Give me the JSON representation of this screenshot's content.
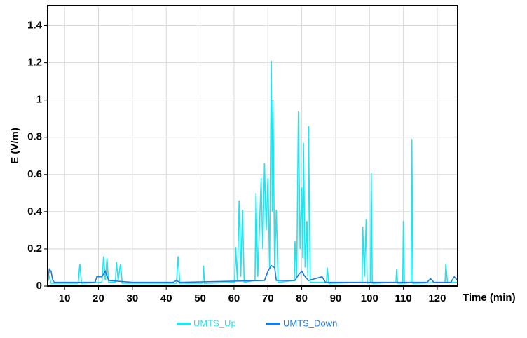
{
  "chart_data": {
    "type": "line",
    "xlabel": "Time (min)",
    "ylabel": "E (V/m)",
    "xlim": [
      5,
      126
    ],
    "ylim": [
      0,
      1.5
    ],
    "xticks": [
      10,
      20,
      30,
      40,
      50,
      60,
      70,
      80,
      90,
      100,
      110,
      120
    ],
    "yticks": [
      0,
      0.2,
      0.4,
      0.6,
      0.8,
      1,
      1.2,
      1.4
    ],
    "grid": true,
    "legend": "bottom",
    "series": [
      {
        "name": "UMTS_Up",
        "color": "#22e3ee",
        "x": [
          5,
          5.5,
          6,
          14,
          14.5,
          15,
          21,
          21.5,
          22,
          22.5,
          23,
          25,
          25.3,
          25.8,
          26.5,
          27,
          43,
          43.5,
          44,
          50.8,
          51,
          51.3,
          60.2,
          60.5,
          61,
          61.5,
          62,
          62.5,
          63,
          66.2,
          66.5,
          67,
          68,
          68.5,
          69,
          69.5,
          70,
          70.5,
          71,
          71.3,
          71.5,
          72,
          72.5,
          73,
          77.8,
          78,
          78.5,
          79,
          79.5,
          80,
          80.3,
          80.5,
          81,
          81.5,
          81.8,
          82,
          82.5,
          87.3,
          87.5,
          88,
          97.8,
          98,
          98.5,
          99,
          99.3,
          100.3,
          100.5,
          100.8,
          107.8,
          108,
          108.3,
          109.8,
          110,
          110.3,
          112.3,
          112.5,
          112.8,
          122.3,
          122.5,
          123,
          126
        ],
        "values": [
          0.02,
          0.05,
          0.015,
          0.015,
          0.12,
          0.015,
          0.02,
          0.16,
          0.03,
          0.15,
          0.02,
          0.02,
          0.13,
          0.03,
          0.12,
          0.015,
          0.015,
          0.16,
          0.015,
          0.015,
          0.11,
          0.015,
          0.02,
          0.21,
          0.03,
          0.46,
          0.05,
          0.41,
          0.02,
          0.03,
          0.5,
          0.05,
          0.58,
          0.2,
          0.66,
          0.3,
          0.58,
          0.1,
          1.21,
          0.4,
          1.0,
          0.1,
          0.41,
          0.02,
          0.03,
          0.24,
          0.05,
          0.94,
          0.2,
          0.53,
          0.15,
          0.77,
          0.1,
          0.35,
          0.05,
          0.86,
          0.02,
          0.02,
          0.1,
          0.015,
          0.02,
          0.32,
          0.05,
          0.36,
          0.015,
          0.02,
          0.61,
          0.015,
          0.02,
          0.09,
          0.015,
          0.015,
          0.35,
          0.015,
          0.02,
          0.79,
          0.015,
          0.02,
          0.12,
          0.02,
          0.02
        ]
      },
      {
        "name": "UMTS_Down",
        "color": "#1a7be0",
        "x": [
          5,
          5.5,
          6,
          6.5,
          7,
          19,
          19.5,
          21,
          22,
          23,
          30,
          42,
          43,
          44,
          69,
          70,
          71,
          72,
          72.5,
          78,
          79,
          80,
          81,
          82,
          86,
          87,
          117,
          118,
          119,
          124,
          125,
          126
        ],
        "values": [
          0.03,
          0.09,
          0.08,
          0.03,
          0.02,
          0.02,
          0.05,
          0.05,
          0.08,
          0.03,
          0.02,
          0.02,
          0.03,
          0.02,
          0.03,
          0.08,
          0.11,
          0.1,
          0.03,
          0.03,
          0.06,
          0.08,
          0.05,
          0.03,
          0.05,
          0.02,
          0.02,
          0.04,
          0.02,
          0.02,
          0.05,
          0.03
        ]
      }
    ]
  }
}
